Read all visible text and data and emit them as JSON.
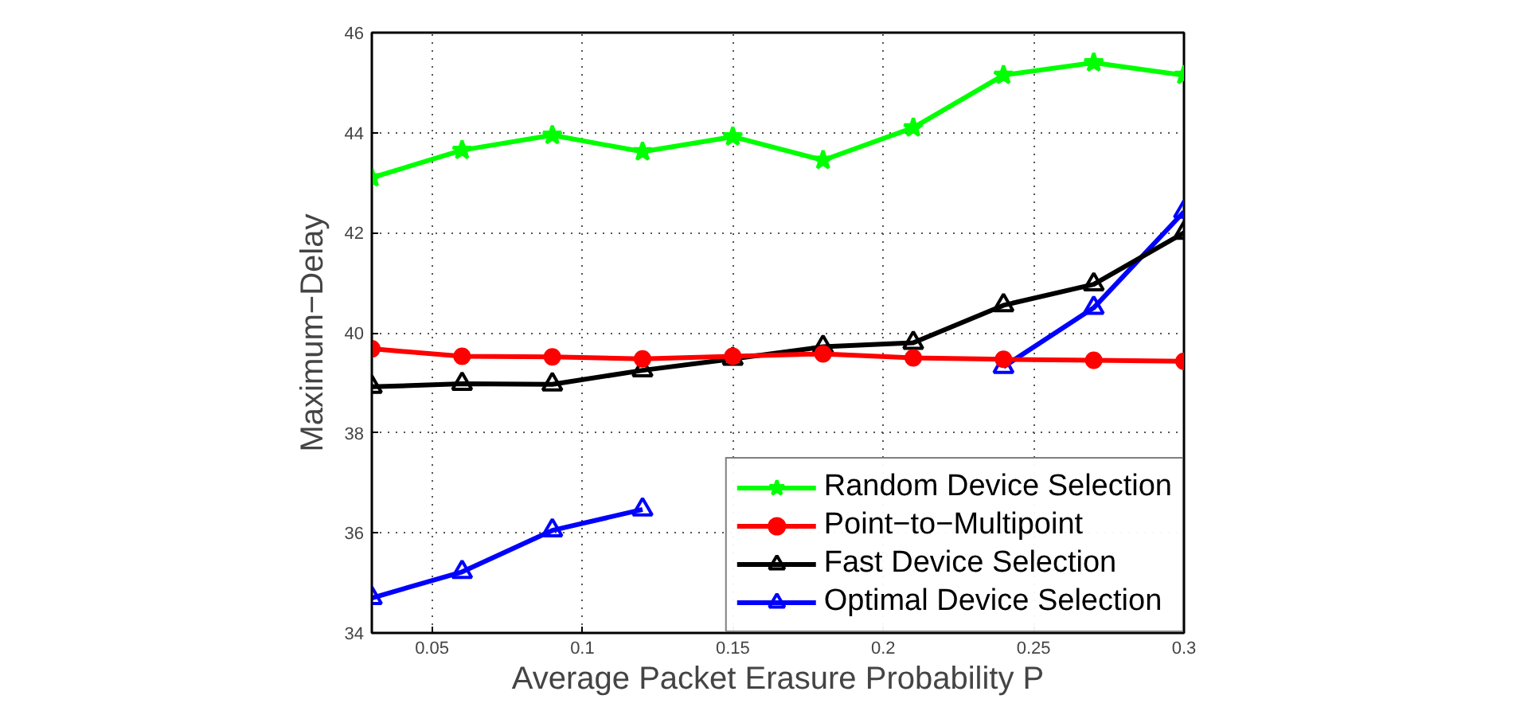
{
  "chart_data": {
    "type": "line",
    "xlabel": "Average Packet Erasure Probability P",
    "ylabel": "Maximum−Delay",
    "x": [
      0.03,
      0.06,
      0.09,
      0.12,
      0.15,
      0.18,
      0.21,
      0.24,
      0.27,
      0.3
    ],
    "xlim": [
      0.03,
      0.3
    ],
    "xticks": [
      0.05,
      0.1,
      0.15,
      0.2,
      0.25,
      0.3
    ],
    "ylim": [
      34,
      46
    ],
    "yticks": [
      34,
      36,
      38,
      40,
      42,
      44,
      46
    ],
    "grid": true,
    "legend": "bottom right",
    "line_style": "solid",
    "series": [
      {
        "name": "Random Device Selection",
        "color": "#00ff00",
        "marker": "star",
        "values": [
          43.1,
          43.65,
          43.95,
          43.62,
          43.92,
          43.45,
          44.1,
          45.15,
          45.4,
          45.15
        ]
      },
      {
        "name": "Point−to−Multipoint",
        "color": "#ff0000",
        "marker": "circle",
        "values": [
          39.68,
          39.53,
          39.52,
          39.48,
          39.53,
          39.58,
          39.5,
          39.47,
          39.45,
          39.43
        ]
      },
      {
        "name": "Fast Device Selection",
        "color": "#000000",
        "marker": "triangle",
        "values": [
          38.92,
          38.98,
          38.97,
          39.25,
          39.48,
          39.72,
          39.8,
          40.55,
          40.97,
          42.0
        ]
      },
      {
        "name": "Optimal Device Selection",
        "color": "#0000ff",
        "marker": "triangle",
        "values": [
          34.7,
          35.22,
          36.05,
          36.47,
          null,
          null,
          null,
          39.32,
          40.5,
          42.42
        ]
      }
    ]
  }
}
